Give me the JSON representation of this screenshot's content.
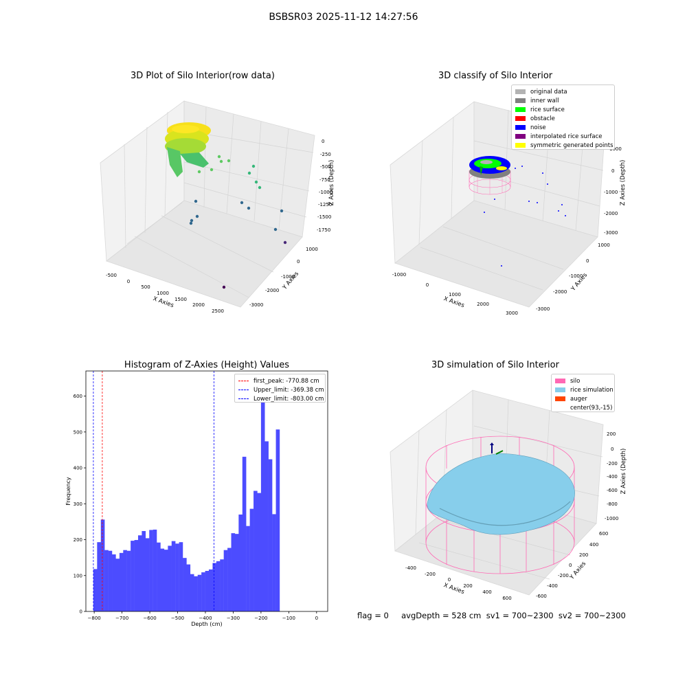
{
  "figure": {
    "suptitle": "BSBSR03 2025-11-12 14:27:56",
    "footer": "flag = 0     avgDepth = 528 cm  sv1 = 700~2300  sv2 = 700~2300"
  },
  "raw_plot": {
    "title": "3D Plot of Silo Interior(row data)",
    "xlabel": "X Axies",
    "ylabel": "Y Axies",
    "zlabel": "Z Axies (Depth)",
    "x_ticks": [
      "-500",
      "0",
      "500",
      "1000",
      "1500",
      "2000",
      "2500"
    ],
    "y_ticks": [
      "1000",
      "0",
      "-1000",
      "-2000",
      "-3000"
    ],
    "z_ticks": [
      "0",
      "-250",
      "-500",
      "-750",
      "-1000",
      "-1250",
      "-1500",
      "-1750"
    ]
  },
  "classify_plot": {
    "title": "3D classify of Silo Interior",
    "xlabel": "X Axies",
    "ylabel": "Y Axies",
    "zlabel": "Z Axies (Depth)",
    "x_ticks": [
      "-1000",
      "0",
      "1000",
      "2000",
      "3000"
    ],
    "y_ticks": [
      "1000",
      "0",
      "-1000",
      "-2000",
      "-3000"
    ],
    "z_ticks": [
      "1000",
      "0",
      "-1000",
      "-2000",
      "-3000"
    ],
    "legend": [
      {
        "label": "original data",
        "color": "#b3b3b3"
      },
      {
        "label": "inner wall",
        "color": "#808080"
      },
      {
        "label": "rice surface",
        "color": "#00ff00"
      },
      {
        "label": "obstacle",
        "color": "#ff0000"
      },
      {
        "label": "noise",
        "color": "#0000ff"
      },
      {
        "label": "interpolated rice surface",
        "color": "#800080"
      },
      {
        "label": "symmetric generated points",
        "color": "#ffff00"
      }
    ]
  },
  "simulation_plot": {
    "title": "3D simulation of Silo Interior",
    "xlabel": "X Axies",
    "ylabel": "Y Axies",
    "zlabel": "Z Axies (Depth)",
    "x_ticks": [
      "-400",
      "-200",
      "0",
      "200",
      "400",
      "600"
    ],
    "y_ticks": [
      "600",
      "400",
      "200",
      "0",
      "-200",
      "-400",
      "-600"
    ],
    "z_ticks": [
      "200",
      "0",
      "-200",
      "-400",
      "-600",
      "-800",
      "-1000"
    ],
    "legend": [
      {
        "label": "silo",
        "color": "#ff69b4"
      },
      {
        "label": "rice simulation",
        "color": "#87ceeb"
      },
      {
        "label": "auger",
        "color": "#ff4500"
      },
      {
        "label": "center(93,-15)",
        "color": "#ffffff"
      }
    ]
  },
  "chart_data": {
    "type": "bar",
    "title": "Histogram of Z-Axies (Height) Values",
    "xlabel": "Depth (cm)",
    "ylabel": "Frequency",
    "xlim": [
      -830,
      40
    ],
    "ylim": [
      0,
      670
    ],
    "x_ticks": [
      -800,
      -700,
      -600,
      -500,
      -400,
      -300,
      -200,
      -100,
      0
    ],
    "y_ticks": [
      0,
      100,
      200,
      300,
      400,
      500,
      600
    ],
    "bar_color": "#4c4cff",
    "bin_width": 13.4,
    "bin_start": -803,
    "values": [
      118,
      193,
      256,
      171,
      169,
      159,
      147,
      163,
      171,
      169,
      197,
      199,
      212,
      224,
      204,
      227,
      228,
      192,
      175,
      172,
      183,
      196,
      189,
      193,
      149,
      131,
      104,
      98,
      102,
      109,
      113,
      117,
      135,
      140,
      145,
      171,
      177,
      218,
      216,
      270,
      431,
      238,
      286,
      336,
      330,
      602,
      474,
      424,
      271,
      507
    ],
    "vlines": [
      {
        "label": "first_peak: -770.88 cm",
        "x": -770.88,
        "color": "#ff0000"
      },
      {
        "label": "Upper_limit: -369.38 cm",
        "x": -369.38,
        "color": "#0000ff"
      },
      {
        "label": "Lower_limit: -803.00 cm",
        "x": -803.0,
        "color": "#0000ff"
      }
    ],
    "legend_position": "upper right"
  }
}
